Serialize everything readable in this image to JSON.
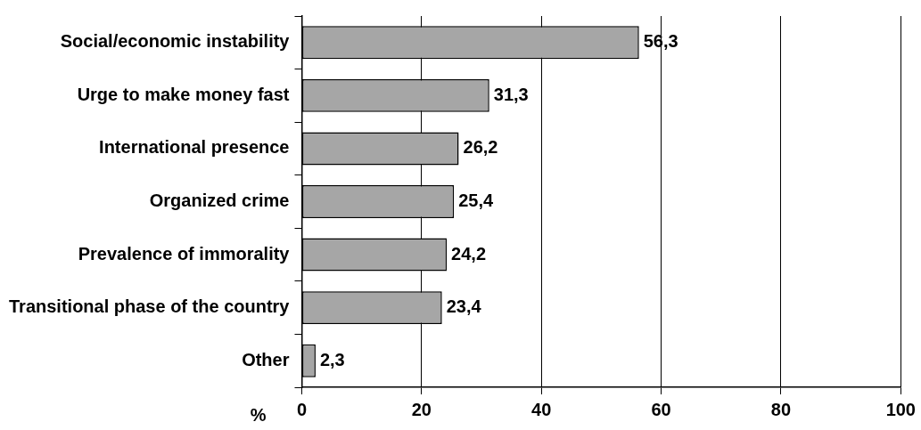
{
  "chart_data": {
    "type": "bar",
    "orientation": "horizontal",
    "xlabel": "%",
    "categories": [
      "Social/economic instability",
      "Urge to make money fast",
      "International presence",
      "Organized crime",
      "Prevalence of immorality",
      "Transitional phase of the country",
      "Other"
    ],
    "values": [
      56.3,
      31.3,
      26.2,
      25.4,
      24.2,
      23.4,
      2.3
    ],
    "value_labels": [
      "56,3",
      "31,3",
      "26,2",
      "25,4",
      "24,2",
      "23,4",
      "2,3"
    ],
    "color": "#a6a6a6",
    "xlim": [
      0,
      100
    ],
    "xticks": [
      0,
      20,
      40,
      60,
      80,
      100
    ],
    "grid": "x"
  }
}
